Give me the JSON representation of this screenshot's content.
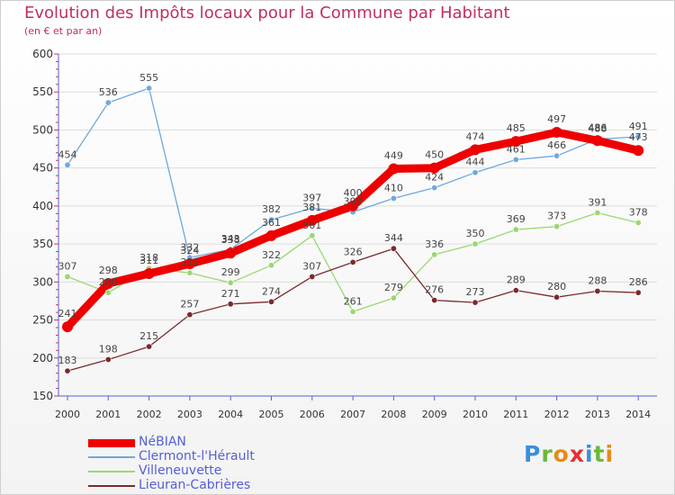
{
  "header": {
    "title": "Evolution des Impôts locaux pour la Commune par Habitant",
    "subtitle": "(en € et par an)"
  },
  "brand": {
    "name": "Proxiti",
    "letters": [
      "P",
      "r",
      "o",
      "x",
      "i",
      "t",
      "i"
    ],
    "colors": [
      "#3a8fd8",
      "#6bb83a",
      "#e88a1a",
      "#e53030",
      "#3a8fd8",
      "#6bb83a",
      "#e88a1a"
    ]
  },
  "chart_data": {
    "type": "line",
    "title": "Evolution des Impôts locaux pour la Commune par Habitant",
    "subtitle": "(en € et par an)",
    "xlabel": "",
    "ylabel": "",
    "categories": [
      "2000",
      "2001",
      "2002",
      "2003",
      "2004",
      "2005",
      "2006",
      "2007",
      "2008",
      "2009",
      "2010",
      "2011",
      "2012",
      "2013",
      "2014"
    ],
    "ylim": [
      150,
      600
    ],
    "yticks": [
      150,
      200,
      250,
      300,
      350,
      400,
      450,
      500,
      550,
      600
    ],
    "grid": "horizontal",
    "legend_position": "bottom-left",
    "series": [
      {
        "name": "NéBIAN",
        "color": "#ee0000",
        "highlight": true,
        "values": [
          241,
          298,
          311,
          324,
          338,
          361,
          381,
          400,
          449,
          450,
          474,
          485,
          497,
          486,
          473
        ]
      },
      {
        "name": "Clermont-l'Hérault",
        "color": "#6fa8dc",
        "highlight": false,
        "values": [
          454,
          536,
          555,
          332,
          343,
          382,
          397,
          392,
          410,
          424,
          444,
          461,
          466,
          488,
          491
        ]
      },
      {
        "name": "Villeneuvette",
        "color": "#9ad86f",
        "highlight": false,
        "values": [
          307,
          286,
          318,
          312,
          299,
          322,
          361,
          261,
          279,
          336,
          350,
          369,
          373,
          391,
          378
        ]
      },
      {
        "name": "Lieuran-Cabrières",
        "color": "#7a2a2a",
        "highlight": false,
        "values": [
          183,
          198,
          215,
          257,
          271,
          274,
          307,
          326,
          344,
          276,
          273,
          289,
          280,
          288,
          286
        ]
      }
    ]
  }
}
